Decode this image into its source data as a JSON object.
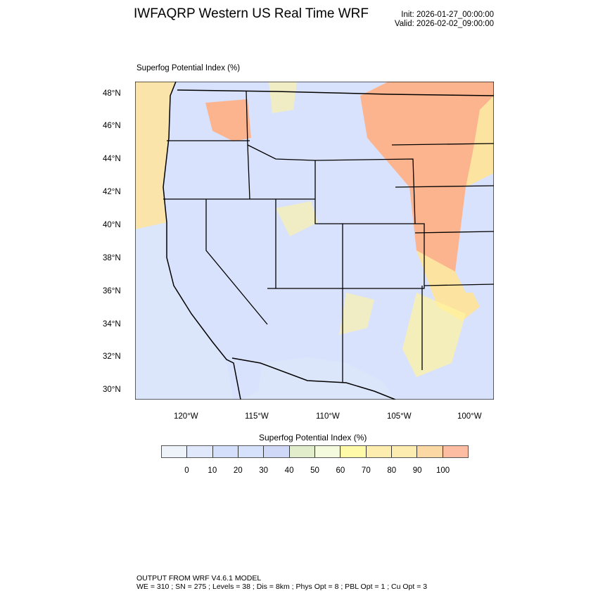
{
  "header": {
    "title": "IWFAQRP Western US Real Time WRF",
    "init": "Init: 2026-01-27_00:00:00",
    "valid": "Valid: 2026-02-02_09:00:00"
  },
  "map": {
    "field_label": "Superfog Potential Index   (%)",
    "lat_ticks": [
      "48°N",
      "46°N",
      "44°N",
      "42°N",
      "40°N",
      "38°N",
      "36°N",
      "34°N",
      "32°N",
      "30°N"
    ],
    "lon_ticks": [
      "120°W",
      "115°W",
      "110°W",
      "105°W",
      "100°W"
    ],
    "colors": {
      "ocean": "#dbe6fb",
      "land_low": "#d9e2fc",
      "yellow": "#fff59e",
      "light_orange": "#fde3a0",
      "orange": "#fcb48f",
      "border": "#000000"
    }
  },
  "colorbar": {
    "title": "Superfog Potential Index  (%)",
    "colors": [
      "#eef2f9",
      "#e0e8fb",
      "#d4e0fb",
      "#d6e2fb",
      "#d0d8f8",
      "#e2eecb",
      "#f4fadd",
      "#fffaa8",
      "#fdeeb0",
      "#fdecb0",
      "#fcd8a4",
      "#fcbda2"
    ],
    "labels": [
      "0",
      "10",
      "20",
      "30",
      "40",
      "50",
      "60",
      "70",
      "80",
      "90",
      "100"
    ]
  },
  "footer": {
    "line1": "OUTPUT FROM WRF V4.6.1 MODEL",
    "line2": "WE = 310 ; SN = 275 ; Levels = 38 ; Dis = 8km ; Phys Opt = 8 ; PBL Opt = 1 ; Cu Opt = 3"
  }
}
